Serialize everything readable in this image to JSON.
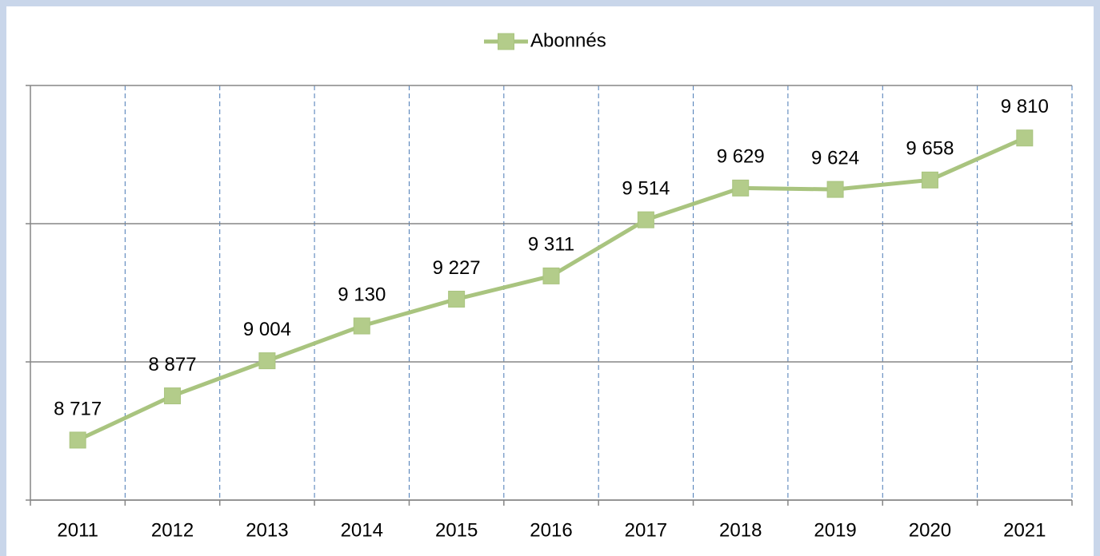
{
  "chart_data": {
    "type": "line",
    "categories": [
      "2011",
      "2012",
      "2013",
      "2014",
      "2015",
      "2016",
      "2017",
      "2018",
      "2019",
      "2020",
      "2021"
    ],
    "series": [
      {
        "name": "Abonnés",
        "color": "#a9c47f",
        "values": [
          8717,
          8877,
          9004,
          9130,
          9227,
          9311,
          9514,
          9629,
          9624,
          9658,
          9810
        ],
        "value_labels": [
          "8 717",
          "8 877",
          "9 004",
          "9 130",
          "9 227",
          "9 311",
          "9 514",
          "9 629",
          "9 624",
          "9 658",
          "9 810"
        ]
      }
    ],
    "ylim": [
      8500,
      10000
    ],
    "yticks": [
      8500,
      9000,
      9500,
      10000
    ],
    "grid": true,
    "legend": "top"
  }
}
